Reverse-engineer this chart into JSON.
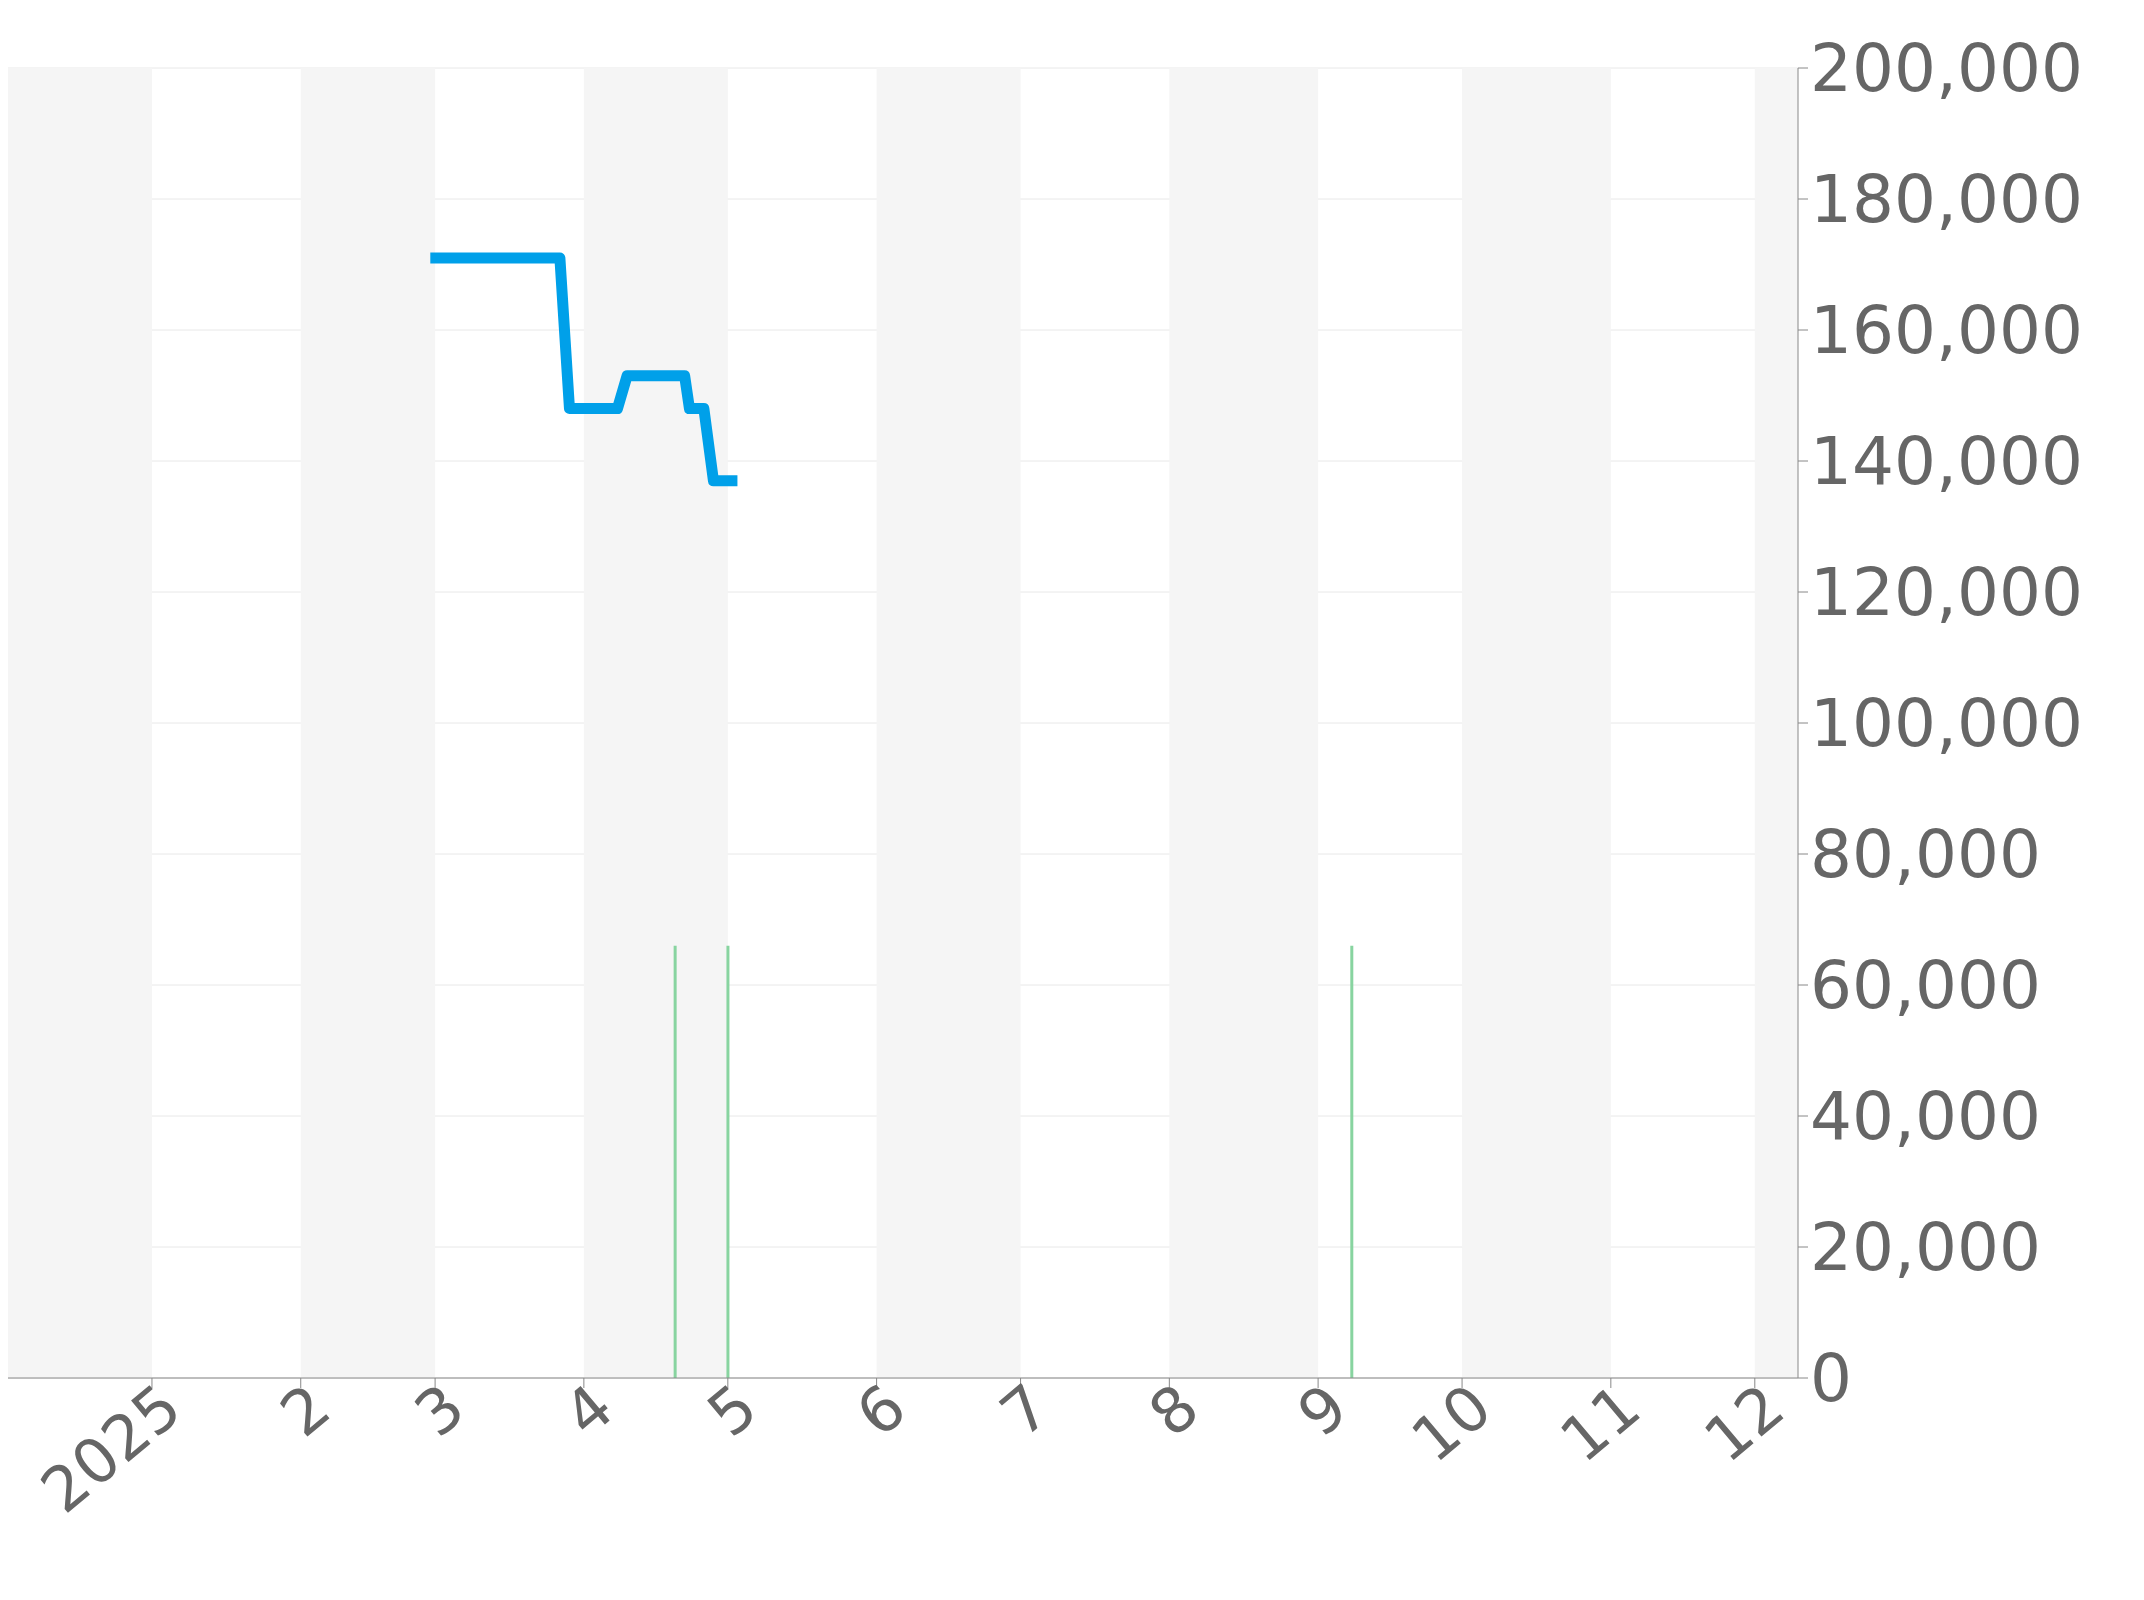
{
  "chart_data": {
    "type": "line",
    "xlim": [
      "2024-12-02",
      "2025-12-10"
    ],
    "ylim": [
      0,
      200000
    ],
    "xticks": [
      {
        "value": "2025-01",
        "label": "2025"
      },
      {
        "value": "2025-02",
        "label": "2"
      },
      {
        "value": "2025-03",
        "label": "3"
      },
      {
        "value": "2025-04",
        "label": "4"
      },
      {
        "value": "2025-05",
        "label": "5"
      },
      {
        "value": "2025-06",
        "label": "6"
      },
      {
        "value": "2025-07",
        "label": "7"
      },
      {
        "value": "2025-08",
        "label": "8"
      },
      {
        "value": "2025-09",
        "label": "9"
      },
      {
        "value": "2025-10",
        "label": "10"
      },
      {
        "value": "2025-11",
        "label": "11"
      },
      {
        "value": "2025-12",
        "label": "12"
      }
    ],
    "yticks": [
      {
        "value": 0,
        "label": "0"
      },
      {
        "value": 20000,
        "label": "20,000"
      },
      {
        "value": 40000,
        "label": "40,000"
      },
      {
        "value": 60000,
        "label": "60,000"
      },
      {
        "value": 80000,
        "label": "80,000"
      },
      {
        "value": 100000,
        "label": "100,000"
      },
      {
        "value": 120000,
        "label": "120,000"
      },
      {
        "value": 140000,
        "label": "140,000"
      },
      {
        "value": 160000,
        "label": "160,000"
      },
      {
        "value": 180000,
        "label": "180,000"
      },
      {
        "value": 200000,
        "label": "200,000"
      }
    ],
    "grid": "y",
    "legend": false,
    "marker": "none",
    "line_style": "solid",
    "series": [
      {
        "color": "#00a0e9",
        "x": [
          "2025-02-28",
          "2025-03-27",
          "2025-03-29",
          "2025-04-08",
          "2025-04-10",
          "2025-04-22",
          "2025-04-23",
          "2025-04-26",
          "2025-04-28",
          "2025-05-03"
        ],
        "values": [
          171000,
          171000,
          148000,
          148000,
          153000,
          153000,
          148000,
          148000,
          137000,
          137000
        ]
      },
      {
        "type": "bar",
        "color": "#88d4a0",
        "x": [
          "2025-04-20",
          "2025-05-01",
          "2025-09-08"
        ],
        "values": [
          66000,
          66000,
          66000
        ]
      }
    ],
    "bands": [
      {
        "axis": "x",
        "from": "2024-12-02",
        "to": "2025-01",
        "color": "#f5f5f5"
      },
      {
        "axis": "x",
        "from": "2025-02",
        "to": "2025-03",
        "color": "#f5f5f5"
      },
      {
        "axis": "x",
        "from": "2025-04",
        "to": "2025-05",
        "color": "#f5f5f5"
      },
      {
        "axis": "x",
        "from": "2025-06",
        "to": "2025-07",
        "color": "#f5f5f5"
      },
      {
        "axis": "x",
        "from": "2025-08",
        "to": "2025-09",
        "color": "#f5f5f5"
      },
      {
        "axis": "x",
        "from": "2025-10",
        "to": "2025-11",
        "color": "#f5f5f5"
      },
      {
        "axis": "x",
        "from": "2025-12",
        "to": "2025-12-10",
        "color": "#f5f5f5"
      }
    ]
  }
}
